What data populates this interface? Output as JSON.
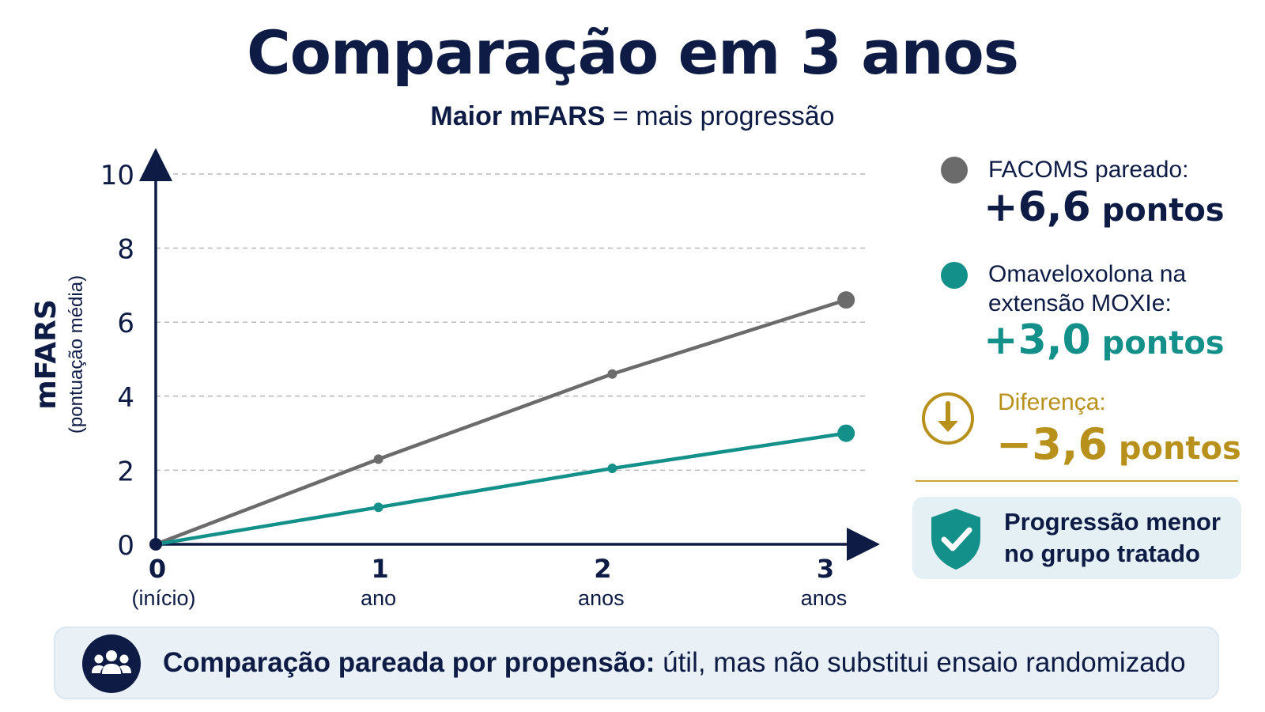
{
  "title": "Comparação em 3 anos",
  "subtitle": {
    "strong": "Maior mFARS",
    "rest": " = mais progressão"
  },
  "chart_data": {
    "type": "line",
    "ylabel": "mFARS",
    "ylabel_sub": "(pontuação média)",
    "ylim": [
      0,
      10
    ],
    "yticks": [
      "0",
      "2",
      "4",
      "6",
      "8",
      "10"
    ],
    "grid": true,
    "x": [
      0,
      1,
      2,
      3
    ],
    "xticks": [
      {
        "value": 0,
        "label": "0",
        "sub": "(início)"
      },
      {
        "value": 1,
        "label": "1",
        "sub": "ano"
      },
      {
        "value": 2,
        "label": "2",
        "sub": "anos"
      },
      {
        "value": 3,
        "label": "3",
        "sub": "anos"
      }
    ],
    "series": [
      {
        "key": "facoms",
        "color": "#6b6b6b",
        "x": [
          0,
          1,
          2.05,
          3.1
        ],
        "values": [
          0,
          2.3,
          4.6,
          6.6
        ]
      },
      {
        "key": "omav",
        "color": "#14908a",
        "x": [
          0,
          1,
          2.05,
          3.1
        ],
        "values": [
          0,
          1.0,
          2.05,
          3.0
        ]
      }
    ]
  },
  "legend": {
    "facoms": {
      "label": "FACOMS pareado:",
      "value": "+6,6",
      "unit": " pontos",
      "color": "#6b6b6b",
      "value_color": "#0d1b45"
    },
    "omav": {
      "label_line1": "Omaveloxolona na",
      "label_line2": "extensão MOXIe:",
      "value": "+3,0",
      "unit": " pontos",
      "color": "#14908a",
      "value_color": "#14908a"
    }
  },
  "difference": {
    "label": "Diferença:",
    "value": "−3,6",
    "unit": " pontos",
    "icon": "arrow-down-circle-icon",
    "color": "#b8911d"
  },
  "callout": {
    "line1": "Progressão menor",
    "line2": "no grupo tratado",
    "icon": "shield-check-icon",
    "color": "#14908a"
  },
  "footer": {
    "icon": "people-group-icon",
    "strong": "Comparação pareada por propensão:",
    "rest": " útil, mas não substitui ensaio randomizado"
  }
}
